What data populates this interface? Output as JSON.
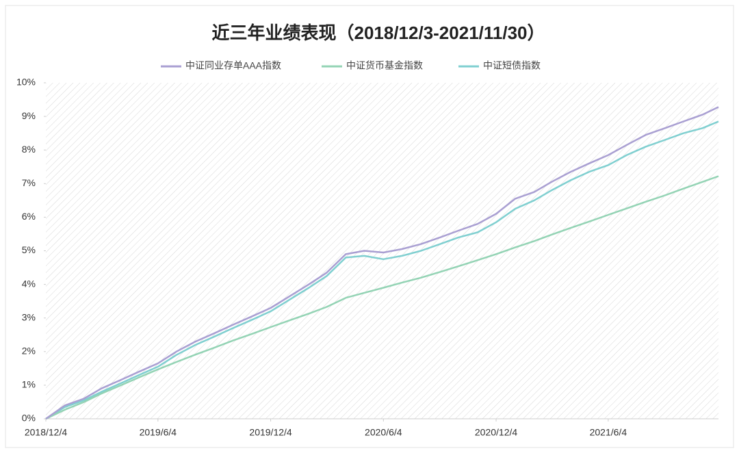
{
  "chart_data": {
    "type": "line",
    "title": "近三年业绩表现（2018/12/3-2021/11/30）",
    "x": [
      "2018/12/4",
      "2019/1/4",
      "2019/2/4",
      "2019/3/4",
      "2019/4/4",
      "2019/5/4",
      "2019/6/4",
      "2019/7/4",
      "2019/8/4",
      "2019/9/4",
      "2019/10/4",
      "2019/11/4",
      "2019/12/4",
      "2020/1/4",
      "2020/2/4",
      "2020/3/4",
      "2020/4/4",
      "2020/5/4",
      "2020/6/4",
      "2020/7/4",
      "2020/8/4",
      "2020/9/4",
      "2020/10/4",
      "2020/11/4",
      "2020/12/4",
      "2021/1/4",
      "2021/2/4",
      "2021/3/4",
      "2021/4/4",
      "2021/5/4",
      "2021/6/4",
      "2021/7/4",
      "2021/8/4",
      "2021/9/4",
      "2021/10/4",
      "2021/11/4",
      "2021/11/30"
    ],
    "series": [
      {
        "name": "中证同业存单AAA指数",
        "color": "#a99fd2",
        "values": [
          0,
          0.4,
          0.6,
          0.9,
          1.15,
          1.4,
          1.65,
          2.0,
          2.3,
          2.55,
          2.8,
          3.05,
          3.3,
          3.65,
          4.0,
          4.35,
          4.9,
          5.0,
          4.95,
          5.05,
          5.2,
          5.4,
          5.6,
          5.8,
          6.1,
          6.55,
          6.75,
          7.05,
          7.35,
          7.6,
          7.85,
          8.15,
          8.45,
          8.65,
          8.85,
          9.05,
          9.28
        ]
      },
      {
        "name": "中证货币基金指数",
        "color": "#93d3b4",
        "values": [
          0,
          0.27,
          0.5,
          0.75,
          0.99,
          1.23,
          1.47,
          1.69,
          1.91,
          2.12,
          2.33,
          2.53,
          2.73,
          2.93,
          3.13,
          3.33,
          3.6,
          3.75,
          3.9,
          4.05,
          4.2,
          4.37,
          4.54,
          4.72,
          4.9,
          5.1,
          5.29,
          5.48,
          5.68,
          5.87,
          6.07,
          6.26,
          6.46,
          6.65,
          6.85,
          7.05,
          7.22
        ]
      },
      {
        "name": "中证短债指数",
        "color": "#7fcfd0",
        "values": [
          0,
          0.35,
          0.55,
          0.8,
          1.05,
          1.3,
          1.55,
          1.9,
          2.2,
          2.45,
          2.7,
          2.95,
          3.2,
          3.55,
          3.9,
          4.25,
          4.8,
          4.85,
          4.75,
          4.85,
          5.0,
          5.2,
          5.4,
          5.55,
          5.85,
          6.25,
          6.5,
          6.8,
          7.1,
          7.35,
          7.55,
          7.85,
          8.1,
          8.3,
          8.5,
          8.65,
          8.85
        ]
      }
    ],
    "xlim": [
      "2018/12/4",
      "2021/11/30"
    ],
    "xticks": [
      "2018/12/4",
      "2019/6/4",
      "2019/12/4",
      "2020/6/4",
      "2020/12/4",
      "2021/6/4"
    ],
    "ylim": [
      0,
      10
    ],
    "yticks": [
      {
        "value": 0,
        "label": "0%"
      },
      {
        "value": 1,
        "label": "1%"
      },
      {
        "value": 2,
        "label": "2%"
      },
      {
        "value": 3,
        "label": "3%"
      },
      {
        "value": 4,
        "label": "4%"
      },
      {
        "value": 5,
        "label": "5%"
      },
      {
        "value": 6,
        "label": "6%"
      },
      {
        "value": 7,
        "label": "7%"
      },
      {
        "value": 8,
        "label": "8%"
      },
      {
        "value": 9,
        "label": "9%"
      },
      {
        "value": 10,
        "label": "10%"
      }
    ],
    "legend": "top"
  }
}
